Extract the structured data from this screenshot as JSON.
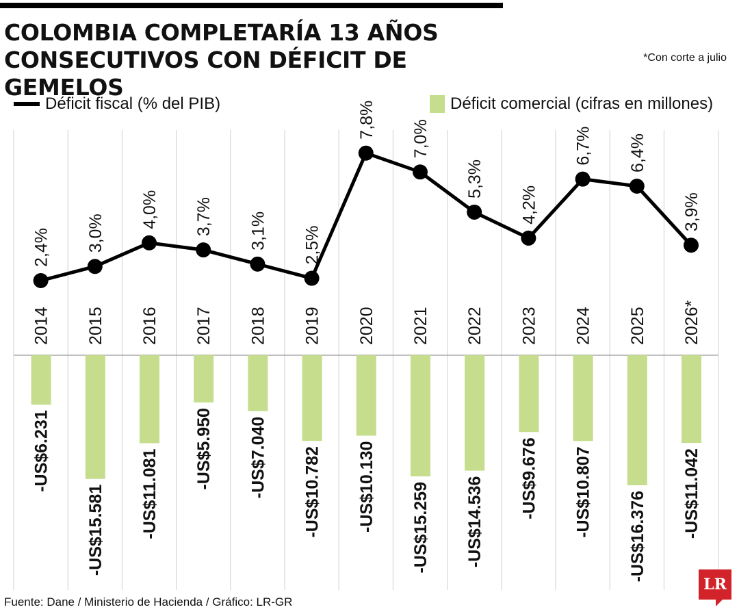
{
  "header": {
    "title_line1": "COLOMBIA COMPLETARÍA 13 AÑOS",
    "title_line2": "CONSECUTIVOS CON DÉFICIT DE GEMELOS",
    "note": "*Con corte a julio"
  },
  "legend": {
    "line_label": "Déficit fiscal (% del PIB)",
    "bar_label": "Déficit comercial (cifras en millones)"
  },
  "footer": {
    "source": "Fuente: Dane / Ministerio de Hacienda / Gráfico: LR-GR",
    "logo": "LR"
  },
  "colors": {
    "bar": "#c5dd8c",
    "line": "#000000",
    "logo": "#d2232a"
  },
  "chart_data": {
    "type": "bar",
    "categories": [
      "2014",
      "2015",
      "2016",
      "2017",
      "2018",
      "2019",
      "2020",
      "2021",
      "2022",
      "2023",
      "2024",
      "2025",
      "2026*"
    ],
    "series": [
      {
        "name": "Déficit fiscal (% del PIB)",
        "type": "line",
        "values": [
          2.4,
          3.0,
          4.0,
          3.7,
          3.1,
          2.5,
          7.8,
          7.0,
          5.3,
          4.2,
          6.7,
          6.4,
          3.9
        ],
        "labels": [
          "2,4%",
          "3,0%",
          "4,0%",
          "3,7%",
          "3,1%",
          "2,5%",
          "7,8%",
          "7,0%",
          "5,3%",
          "4,2%",
          "6,7%",
          "6,4%",
          "3,9%"
        ]
      },
      {
        "name": "Déficit comercial (cifras en millones)",
        "type": "bar",
        "values": [
          -6231,
          -15581,
          -11081,
          -5950,
          -7040,
          -10782,
          -10130,
          -15259,
          -14536,
          -9676,
          -10807,
          -16376,
          -11042
        ],
        "labels": [
          "-US$6.231",
          "-US$15.581",
          "-US$11.081",
          "-US$5.950",
          "-US$7.040",
          "-US$10.782",
          "-US$10.130",
          "-US$15.259",
          "-US$14.536",
          "-US$9.676",
          "-US$10.807",
          "-US$16.376",
          "-US$11.042"
        ]
      }
    ],
    "grid": "vertical lines between years"
  }
}
